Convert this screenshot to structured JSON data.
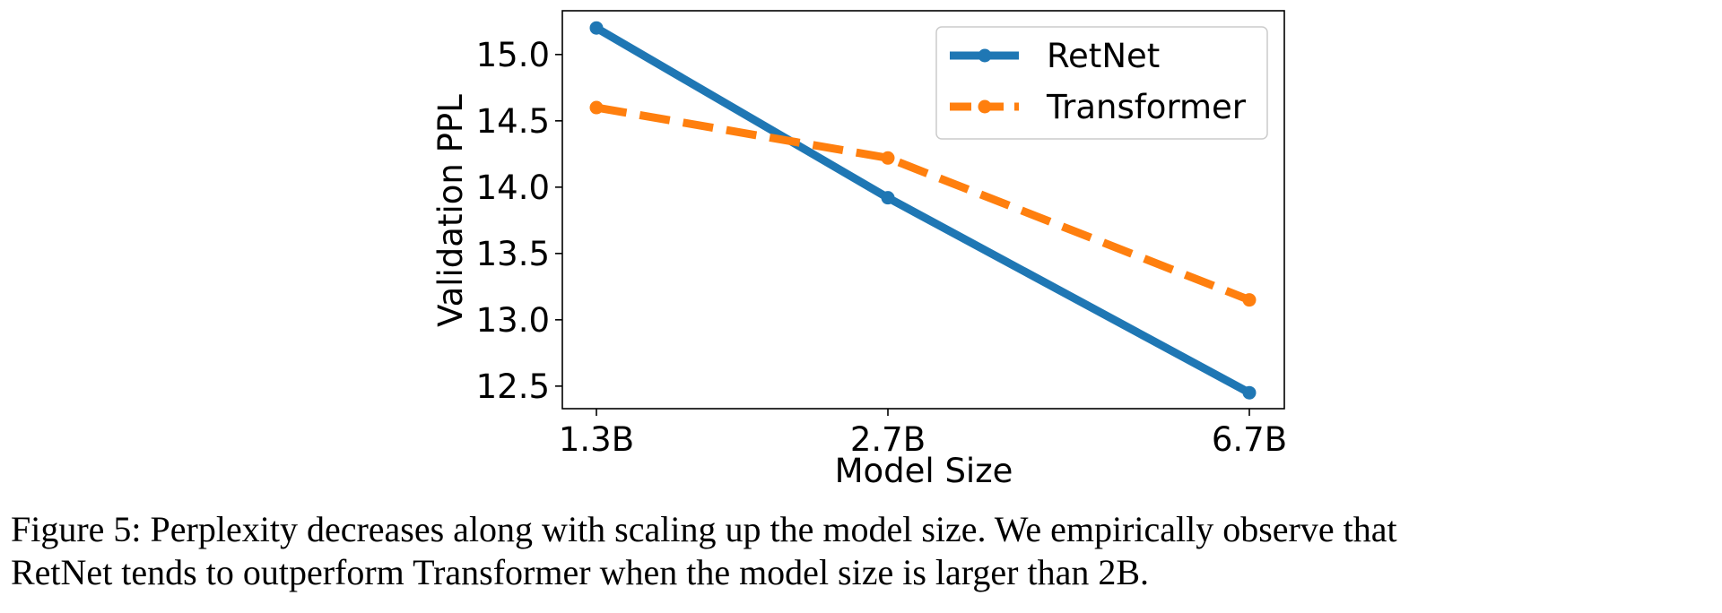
{
  "chart_data": {
    "type": "line",
    "categories": [
      "1.3B",
      "2.7B",
      "6.7B"
    ],
    "xlabel": "Model Size",
    "ylabel": "Validation PPL",
    "ylim": [
      12.33,
      15.33
    ],
    "yticks": [
      "12.5",
      "13.0",
      "13.5",
      "14.0",
      "14.5",
      "15.0"
    ],
    "ytick_values": [
      12.5,
      13.0,
      13.5,
      14.0,
      14.5,
      15.0
    ],
    "legend_position": "top-right",
    "grid": false,
    "series": [
      {
        "name": "RetNet",
        "values": [
          15.2,
          13.92,
          12.45
        ],
        "color": "#1f77b4",
        "style": "solid"
      },
      {
        "name": "Transformer",
        "values": [
          14.6,
          14.22,
          13.15
        ],
        "color": "#ff7f0e",
        "style": "dashed"
      }
    ]
  },
  "caption": "Figure 5: Perplexity decreases along with scaling up the model size. We empirically observe that\nRetNet tends to outperform Transformer when the model size is larger than 2B."
}
